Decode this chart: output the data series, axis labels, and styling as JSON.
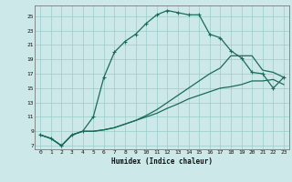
{
  "xlabel": "Humidex (Indice chaleur)",
  "bg_color": "#cce8e8",
  "grid_color": "#99cccc",
  "line_color": "#1a6b5a",
  "xlim": [
    -0.5,
    23.5
  ],
  "ylim": [
    6.5,
    26.5
  ],
  "xticks": [
    0,
    1,
    2,
    3,
    4,
    5,
    6,
    7,
    8,
    9,
    10,
    11,
    12,
    13,
    14,
    15,
    16,
    17,
    18,
    19,
    20,
    21,
    22,
    23
  ],
  "yticks": [
    7,
    9,
    11,
    13,
    15,
    17,
    19,
    21,
    23,
    25
  ],
  "line1_x": [
    0,
    1,
    2,
    3,
    4,
    5,
    6,
    7,
    8,
    9,
    10,
    11,
    12,
    13,
    14,
    15,
    16,
    17,
    18,
    19,
    20,
    21,
    22,
    23
  ],
  "line1_y": [
    8.5,
    8.0,
    7.0,
    8.5,
    9.0,
    11.0,
    16.5,
    20.0,
    21.5,
    22.5,
    24.0,
    25.2,
    25.8,
    25.5,
    25.2,
    25.2,
    22.5,
    22.0,
    20.2,
    19.2,
    17.2,
    17.0,
    15.0,
    16.5
  ],
  "line2_x": [
    0,
    1,
    2,
    3,
    4,
    5,
    6,
    7,
    8,
    9,
    10,
    11,
    12,
    13,
    14,
    15,
    16,
    17,
    18,
    19,
    20,
    21,
    22,
    23
  ],
  "line2_y": [
    8.5,
    8.0,
    7.0,
    8.5,
    9.0,
    9.0,
    9.2,
    9.5,
    10.0,
    10.5,
    11.0,
    11.5,
    12.2,
    12.8,
    13.5,
    14.0,
    14.5,
    15.0,
    15.2,
    15.5,
    16.0,
    16.0,
    16.2,
    15.5
  ],
  "line3_x": [
    0,
    1,
    2,
    3,
    4,
    5,
    6,
    7,
    8,
    9,
    10,
    11,
    12,
    13,
    14,
    15,
    16,
    17,
    18,
    19,
    20,
    21,
    22,
    23
  ],
  "line3_y": [
    8.5,
    8.0,
    7.0,
    8.5,
    9.0,
    9.0,
    9.2,
    9.5,
    10.0,
    10.5,
    11.2,
    12.0,
    13.0,
    14.0,
    15.0,
    16.0,
    17.0,
    17.8,
    19.5,
    19.5,
    19.5,
    17.5,
    17.2,
    16.5
  ]
}
